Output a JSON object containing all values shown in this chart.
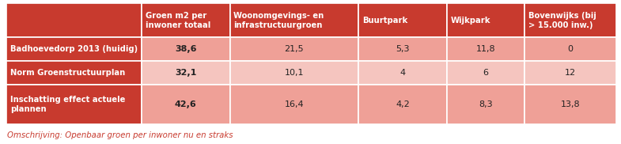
{
  "col_headers": [
    "Groen m2 per\ninwoner totaal",
    "Woonomgevings- en\ninfrastructuurgroen",
    "Buurtpark",
    "Wijkpark",
    "Bovenwijks (bij\n> 15.000 inw.)"
  ],
  "row_headers": [
    "Badhoevedorp 2013 (huidig)",
    "Norm Groenstructuurplan",
    "Inschatting effect actuele\nplannen"
  ],
  "values": [
    [
      "38,6",
      "21,5",
      "5,3",
      "11,8",
      "0"
    ],
    [
      "32,1",
      "10,1",
      "4",
      "6",
      "12"
    ],
    [
      "42,6",
      "16,4",
      "4,2",
      "8,3",
      "13,8"
    ]
  ],
  "col1_bold": [
    true,
    true,
    true
  ],
  "caption": "Omschrijving: Openbaar groen per inwoner nu en straks",
  "header_bg": "#C83A2E",
  "header_text": "#FFFFFF",
  "row_header_bg": "#C83A2E",
  "row_header_text": "#FFFFFF",
  "cell_bg_row0": "#EFA097",
  "cell_bg_row1": "#F5C5BF",
  "cell_bg_row2": "#EFA097",
  "border_color": "#FFFFFF",
  "caption_color": "#C83A2E",
  "background": "#FFFFFF"
}
